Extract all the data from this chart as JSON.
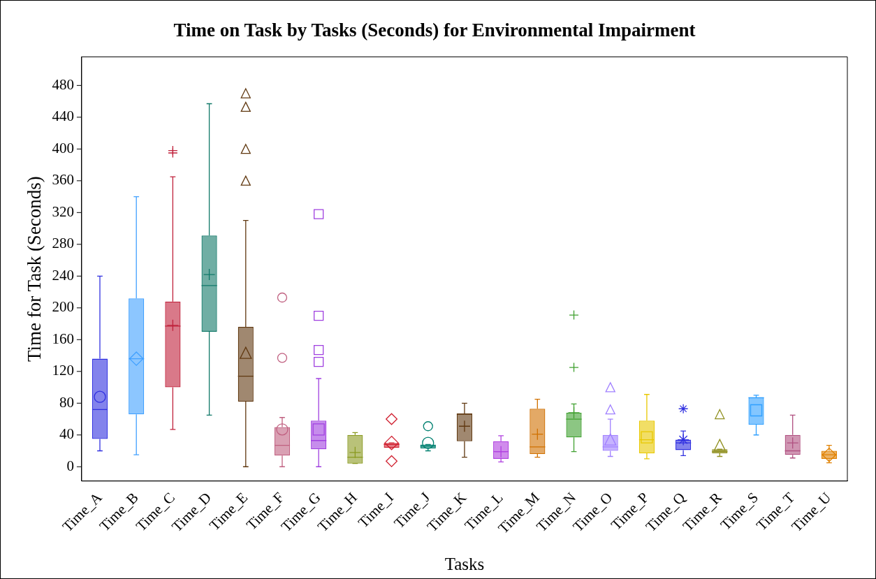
{
  "chart_data": {
    "type": "box",
    "title": "Time on Task by Tasks (Seconds) for Environmental Impairment",
    "xlabel": "Tasks",
    "ylabel": "Time for Task (Seconds)",
    "categories": [
      "Time_A",
      "Time_B",
      "Time_C",
      "Time_D",
      "Time_E",
      "Time_F",
      "Time_G",
      "Time_H",
      "Time_I",
      "Time_J",
      "Time_K",
      "Time_L",
      "Time_M",
      "Time_N",
      "Time_O",
      "Time_P",
      "Time_Q",
      "Time_R",
      "Time_S",
      "Time_T",
      "Time_U"
    ],
    "ylim": [
      -18,
      516
    ],
    "yticks": [
      0,
      40,
      80,
      120,
      160,
      200,
      240,
      280,
      320,
      360,
      400,
      440,
      480
    ],
    "grid": false,
    "legend": false,
    "series": [
      {
        "color": "#3030e0",
        "marker": "circle",
        "boxes": [
          {
            "low": 20,
            "q1": 35,
            "median": 72,
            "q3": 136,
            "high": 240,
            "mean": 88
          },
          null,
          null,
          null,
          null,
          null,
          null,
          null,
          null,
          null,
          null,
          null,
          null,
          null,
          null,
          null,
          null,
          null,
          null,
          null,
          null
        ]
      },
      {
        "color": "#40a0ff",
        "marker": "diamond",
        "boxes": [
          null,
          {
            "low": 15,
            "q1": 66,
            "median": 136,
            "q3": 212,
            "high": 340,
            "mean": 136
          },
          null,
          null,
          null,
          null,
          null,
          null,
          null,
          null,
          null,
          null,
          null,
          null,
          null,
          null,
          null,
          null,
          null,
          null,
          null
        ]
      },
      {
        "color": "#c0203a",
        "marker": "cross",
        "boxes": [
          null,
          null,
          {
            "low": 47,
            "q1": 100,
            "median": 177,
            "q3": 208,
            "high": 365,
            "mean": 178,
            "outliers": [
              395,
              398
            ]
          },
          null,
          null,
          null,
          null,
          null,
          null,
          null,
          null,
          null,
          null,
          null,
          null,
          null,
          null,
          null,
          null,
          null,
          null
        ]
      },
      {
        "color": "#107868",
        "marker": "cross",
        "boxes": [
          null,
          null,
          null,
          {
            "low": 65,
            "q1": 170,
            "median": 228,
            "q3": 291,
            "high": 457,
            "mean": 242
          },
          null,
          null,
          null,
          null,
          null,
          null,
          null,
          null,
          null,
          null,
          null,
          null,
          null,
          null,
          null,
          null,
          null
        ]
      },
      {
        "color": "#603810",
        "marker": "triangle",
        "boxes": [
          null,
          null,
          null,
          null,
          {
            "low": 0,
            "q1": 82,
            "median": 114,
            "q3": 176,
            "high": 310,
            "mean": 142,
            "outliers": [
              359,
              399,
              452,
              469
            ]
          },
          null,
          null,
          null,
          null,
          null,
          null,
          null,
          null,
          null,
          null,
          null,
          null,
          null,
          null,
          null,
          null
        ]
      },
      {
        "color": "#c06080",
        "marker": "circle",
        "boxes": [
          null,
          null,
          null,
          null,
          null,
          {
            "low": 0,
            "q1": 14,
            "median": 27,
            "q3": 50,
            "high": 62,
            "mean": 47,
            "outliers": [
              137,
              213
            ]
          },
          null,
          null,
          null,
          null,
          null,
          null,
          null,
          null,
          null,
          null,
          null,
          null,
          null,
          null,
          null
        ]
      },
      {
        "color": "#a040e0",
        "marker": "square",
        "boxes": [
          null,
          null,
          null,
          null,
          null,
          null,
          {
            "low": 0,
            "q1": 22,
            "median": 33,
            "q3": 58,
            "high": 111,
            "mean": 47,
            "outliers": [
              132,
              147,
              190,
              318
            ]
          },
          null,
          null,
          null,
          null,
          null,
          null,
          null,
          null,
          null,
          null,
          null,
          null,
          null,
          null
        ]
      },
      {
        "color": "#8a9a20",
        "marker": "cross",
        "boxes": [
          null,
          null,
          null,
          null,
          null,
          null,
          null,
          {
            "low": 4,
            "q1": 4,
            "median": 12,
            "q3": 40,
            "high": 43,
            "mean": 18
          },
          null,
          null,
          null,
          null,
          null,
          null,
          null,
          null,
          null,
          null,
          null,
          null,
          null
        ]
      },
      {
        "color": "#d02030",
        "marker": "diamond",
        "boxes": [
          null,
          null,
          null,
          null,
          null,
          null,
          null,
          null,
          {
            "low": 24,
            "q1": 24,
            "median": 28,
            "q3": 30,
            "high": 30,
            "mean": 30,
            "outliers": [
              7,
              60
            ]
          },
          null,
          null,
          null,
          null,
          null,
          null,
          null,
          null,
          null,
          null,
          null,
          null
        ]
      },
      {
        "color": "#008070",
        "marker": "circle",
        "boxes": [
          null,
          null,
          null,
          null,
          null,
          null,
          null,
          null,
          null,
          {
            "low": 20,
            "q1": 23,
            "median": 26,
            "q3": 28,
            "high": 28,
            "mean": 30,
            "outliers": [
              51
            ]
          },
          null,
          null,
          null,
          null,
          null,
          null,
          null,
          null,
          null,
          null,
          null
        ]
      },
      {
        "color": "#603810",
        "marker": "cross",
        "boxes": [
          null,
          null,
          null,
          null,
          null,
          null,
          null,
          null,
          null,
          null,
          {
            "low": 12,
            "q1": 32,
            "median": 66,
            "q3": 67,
            "high": 80,
            "mean": 51
          },
          null,
          null,
          null,
          null,
          null,
          null,
          null,
          null,
          null,
          null
        ]
      },
      {
        "color": "#b040e0",
        "marker": "cross",
        "boxes": [
          null,
          null,
          null,
          null,
          null,
          null,
          null,
          null,
          null,
          null,
          null,
          {
            "low": 6,
            "q1": 10,
            "median": 19,
            "q3": 32,
            "high": 39,
            "mean": 19
          },
          null,
          null,
          null,
          null,
          null,
          null,
          null,
          null,
          null
        ]
      },
      {
        "color": "#d07000",
        "marker": "cross",
        "boxes": [
          null,
          null,
          null,
          null,
          null,
          null,
          null,
          null,
          null,
          null,
          null,
          null,
          {
            "low": 12,
            "q1": 16,
            "median": 25,
            "q3": 73,
            "high": 85,
            "mean": 41
          },
          null,
          null,
          null,
          null,
          null,
          null,
          null,
          null
        ]
      },
      {
        "color": "#40a030",
        "marker": "cross",
        "boxes": [
          null,
          null,
          null,
          null,
          null,
          null,
          null,
          null,
          null,
          null,
          null,
          null,
          null,
          {
            "low": 19,
            "q1": 37,
            "median": 60,
            "q3": 68,
            "high": 79,
            "mean": 68,
            "outliers": [
              125,
              191
            ]
          },
          null,
          null,
          null,
          null,
          null,
          null,
          null
        ]
      },
      {
        "color": "#a080ff",
        "marker": "triangle",
        "boxes": [
          null,
          null,
          null,
          null,
          null,
          null,
          null,
          null,
          null,
          null,
          null,
          null,
          null,
          null,
          {
            "low": 13,
            "q1": 20,
            "median": 25,
            "q3": 40,
            "high": 60,
            "mean": 33,
            "outliers": [
              71,
              99
            ]
          },
          null,
          null,
          null,
          null,
          null,
          null
        ]
      },
      {
        "color": "#e8c800",
        "marker": "square",
        "boxes": [
          null,
          null,
          null,
          null,
          null,
          null,
          null,
          null,
          null,
          null,
          null,
          null,
          null,
          null,
          null,
          {
            "low": 10,
            "q1": 17,
            "median": 34,
            "q3": 58,
            "high": 91,
            "mean": 37
          },
          null,
          null,
          null,
          null,
          null
        ]
      },
      {
        "color": "#3030e0",
        "marker": "star",
        "boxes": [
          null,
          null,
          null,
          null,
          null,
          null,
          null,
          null,
          null,
          null,
          null,
          null,
          null,
          null,
          null,
          null,
          {
            "low": 14,
            "q1": 21,
            "median": 30,
            "q3": 34,
            "high": 45,
            "mean": 34,
            "outliers": [
              73
            ]
          },
          null,
          null,
          null,
          null
        ]
      },
      {
        "color": "#909020",
        "marker": "triangle",
        "boxes": [
          null,
          null,
          null,
          null,
          null,
          null,
          null,
          null,
          null,
          null,
          null,
          null,
          null,
          null,
          null,
          null,
          null,
          {
            "low": 13,
            "q1": 17,
            "median": 19,
            "q3": 22,
            "high": 22,
            "mean": 26,
            "outliers": [
              65
            ]
          },
          null,
          null,
          null
        ]
      },
      {
        "color": "#30a0ff",
        "marker": "square",
        "boxes": [
          null,
          null,
          null,
          null,
          null,
          null,
          null,
          null,
          null,
          null,
          null,
          null,
          null,
          null,
          null,
          null,
          null,
          null,
          {
            "low": 40,
            "q1": 53,
            "median": 87,
            "q3": 87,
            "high": 90,
            "mean": 71
          },
          null,
          null
        ]
      },
      {
        "color": "#b05080",
        "marker": "cross",
        "boxes": [
          null,
          null,
          null,
          null,
          null,
          null,
          null,
          null,
          null,
          null,
          null,
          null,
          null,
          null,
          null,
          null,
          null,
          null,
          null,
          {
            "low": 11,
            "q1": 15,
            "median": 20,
            "q3": 40,
            "high": 65,
            "mean": 30
          },
          null
        ]
      },
      {
        "color": "#e08000",
        "marker": "diamond",
        "boxes": [
          null,
          null,
          null,
          null,
          null,
          null,
          null,
          null,
          null,
          null,
          null,
          null,
          null,
          null,
          null,
          null,
          null,
          null,
          null,
          null,
          {
            "low": 5,
            "q1": 10,
            "median": 15,
            "q3": 20,
            "high": 27,
            "mean": 15
          }
        ]
      }
    ]
  }
}
